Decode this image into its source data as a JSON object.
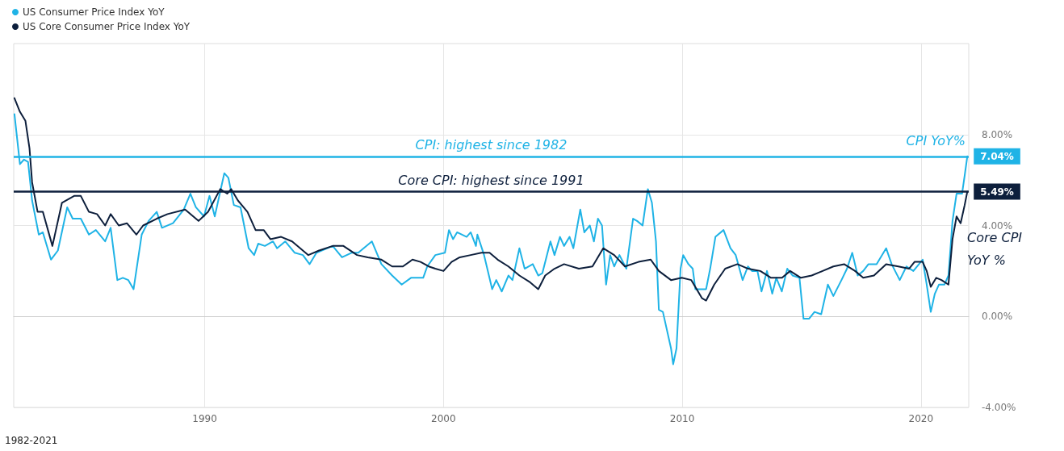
{
  "chart_data": {
    "type": "line",
    "legend": "top left",
    "grid": true,
    "marker": "none",
    "line_style": "solid",
    "xlim": [
      1982,
      2022
    ],
    "xticks": [
      1990,
      2000,
      2010,
      2020
    ],
    "ylim": [
      -4,
      12
    ],
    "yticks": [
      {
        "value": -4,
        "label": "-4.00%"
      },
      {
        "value": 0,
        "label": "0.00%"
      },
      {
        "value": 4,
        "label": "4.00%"
      },
      {
        "value": 8,
        "label": "8.00%"
      }
    ],
    "series": [
      {
        "name": "US Consumer Price Index YoY",
        "color": "#1fb3e6",
        "x": [
          1982.03,
          1982.26,
          1982.43,
          1982.6,
          1982.77,
          1983.05,
          1983.22,
          1983.56,
          1983.85,
          1984.24,
          1984.47,
          1984.81,
          1985.15,
          1985.44,
          1985.83,
          1986.06,
          1986.34,
          1986.57,
          1986.8,
          1987.02,
          1987.36,
          1987.65,
          1987.99,
          1988.21,
          1988.67,
          1989.12,
          1989.4,
          1989.63,
          1989.97,
          1990.2,
          1990.42,
          1990.82,
          1990.99,
          1991.22,
          1991.5,
          1991.84,
          1992.07,
          1992.24,
          1992.52,
          1992.86,
          1993.03,
          1993.37,
          1993.77,
          1994.11,
          1994.39,
          1994.68,
          1995.36,
          1995.75,
          1996.15,
          1996.43,
          1997.0,
          1997.4,
          1997.85,
          1998.25,
          1998.64,
          1999.15,
          1999.32,
          1999.66,
          2000.06,
          2000.23,
          2000.4,
          2000.57,
          2000.97,
          2001.14,
          2001.36,
          2001.42,
          2001.7,
          2002.04,
          2002.21,
          2002.44,
          2002.72,
          2002.89,
          2003.18,
          2003.4,
          2003.74,
          2003.97,
          2004.14,
          2004.48,
          2004.65,
          2004.88,
          2005.05,
          2005.28,
          2005.44,
          2005.73,
          2005.9,
          2006.13,
          2006.3,
          2006.47,
          2006.64,
          2006.81,
          2006.98,
          2007.15,
          2007.37,
          2007.66,
          2007.94,
          2008.11,
          2008.34,
          2008.56,
          2008.73,
          2008.9,
          2009.02,
          2009.19,
          2009.53,
          2009.62,
          2009.76,
          2009.93,
          2010.04,
          2010.26,
          2010.44,
          2010.55,
          2011.0,
          2011.17,
          2011.39,
          2011.73,
          2012.02,
          2012.24,
          2012.53,
          2012.75,
          2012.92,
          2013.15,
          2013.32,
          2013.55,
          2013.77,
          2013.94,
          2014.17,
          2014.4,
          2014.62,
          2014.91,
          2015.08,
          2015.31,
          2015.54,
          2015.82,
          2016.1,
          2016.33,
          2016.67,
          2016.9,
          2017.12,
          2017.35,
          2017.58,
          2017.8,
          2018.14,
          2018.54,
          2018.77,
          2019.11,
          2019.39,
          2019.68,
          2020.07,
          2020.24,
          2020.41,
          2020.58,
          2020.75,
          2020.98,
          2021.15,
          2021.32,
          2021.49,
          2021.72,
          2021.83,
          2021.94
        ],
        "values": [
          8.9,
          6.7,
          6.9,
          6.8,
          5.1,
          3.6,
          3.7,
          2.5,
          2.9,
          4.8,
          4.3,
          4.3,
          3.6,
          3.8,
          3.3,
          3.9,
          1.6,
          1.7,
          1.6,
          1.2,
          3.6,
          4.2,
          4.6,
          3.9,
          4.1,
          4.7,
          5.4,
          4.8,
          4.4,
          5.3,
          4.4,
          6.3,
          6.1,
          4.9,
          4.8,
          3.0,
          2.7,
          3.2,
          3.1,
          3.3,
          3.0,
          3.3,
          2.8,
          2.7,
          2.3,
          2.8,
          3.1,
          2.6,
          2.8,
          2.8,
          3.3,
          2.3,
          1.8,
          1.4,
          1.7,
          1.7,
          2.2,
          2.7,
          2.8,
          3.8,
          3.4,
          3.7,
          3.5,
          3.7,
          3.1,
          3.6,
          2.7,
          1.2,
          1.6,
          1.1,
          1.8,
          1.6,
          3.0,
          2.1,
          2.3,
          1.8,
          1.9,
          3.3,
          2.7,
          3.5,
          3.1,
          3.5,
          3.0,
          4.7,
          3.7,
          4.0,
          3.3,
          4.3,
          4.0,
          1.4,
          2.7,
          2.2,
          2.7,
          2.1,
          4.3,
          4.2,
          4.0,
          5.6,
          5.0,
          3.3,
          0.3,
          0.2,
          -1.4,
          -2.1,
          -1.4,
          2.1,
          2.7,
          2.3,
          2.1,
          1.2,
          1.2,
          2.1,
          3.5,
          3.8,
          3.0,
          2.7,
          1.6,
          2.2,
          2.0,
          2.0,
          1.1,
          2.0,
          1.0,
          1.7,
          1.1,
          2.1,
          1.8,
          1.7,
          -0.1,
          -0.1,
          0.2,
          0.1,
          1.4,
          0.9,
          1.6,
          2.1,
          2.8,
          1.8,
          2.0,
          2.3,
          2.3,
          3.0,
          2.3,
          1.6,
          2.2,
          2.0,
          2.5,
          1.4,
          0.2,
          1.0,
          1.4,
          1.4,
          1.8,
          4.2,
          5.4,
          5.4,
          6.2,
          7.04
        ],
        "value_labels": [
          null,
          null,
          null,
          null,
          null,
          null,
          null,
          null,
          null,
          null,
          null,
          null,
          null,
          null,
          null,
          null,
          null,
          null,
          null,
          null,
          null,
          null,
          null,
          null,
          null,
          null,
          null,
          null,
          null,
          null,
          null,
          null,
          null,
          null,
          null,
          null,
          null,
          null,
          null,
          null,
          null,
          null,
          null,
          null,
          null,
          null,
          null,
          null,
          null,
          null,
          null,
          null,
          null,
          null,
          null,
          null,
          null,
          null,
          null,
          null,
          null,
          null,
          null,
          null,
          null,
          null,
          null,
          null,
          null,
          null,
          null,
          null,
          null,
          null,
          null,
          null,
          null,
          null,
          null,
          null,
          null,
          null,
          null,
          null,
          null,
          null,
          null,
          null,
          null,
          null,
          null,
          null,
          null,
          null,
          null,
          null,
          null,
          null,
          null,
          null,
          null,
          null,
          null,
          null,
          null,
          null,
          null,
          null,
          null,
          null,
          null,
          null,
          null,
          null,
          null,
          null,
          null,
          null,
          null,
          null,
          null,
          null,
          null,
          null,
          null,
          null,
          null,
          null,
          null,
          null,
          null,
          null,
          null,
          null,
          null,
          null,
          null,
          null,
          null,
          null,
          null,
          null,
          null,
          null,
          null,
          null,
          null,
          null,
          null,
          null,
          null,
          null,
          null,
          null,
          null,
          null,
          null,
          "7.04%"
        ]
      },
      {
        "name": "US Core Consumer Price Index YoY",
        "color": "#0d1f3c",
        "x": [
          1982.03,
          1982.26,
          1982.49,
          1982.66,
          1982.77,
          1983.0,
          1983.22,
          1983.62,
          1984.02,
          1984.53,
          1984.81,
          1985.15,
          1985.49,
          1985.83,
          1986.06,
          1986.4,
          1986.74,
          1987.14,
          1987.42,
          1987.99,
          1988.44,
          1989.18,
          1989.74,
          1990.14,
          1990.65,
          1990.94,
          1991.11,
          1991.39,
          1991.79,
          1992.13,
          1992.47,
          1992.75,
          1993.2,
          1993.66,
          1994.34,
          1994.79,
          1995.36,
          1995.81,
          1996.38,
          1996.83,
          1997.4,
          1997.85,
          1998.3,
          1998.7,
          1999.04,
          1999.38,
          1999.66,
          2000.0,
          2000.34,
          2000.68,
          2001.14,
          2001.59,
          2001.93,
          2002.27,
          2002.72,
          2003.18,
          2003.63,
          2003.97,
          2004.26,
          2004.65,
          2005.05,
          2005.67,
          2006.24,
          2006.69,
          2007.15,
          2007.6,
          2008.17,
          2008.68,
          2009.02,
          2009.53,
          2009.98,
          2010.38,
          2010.83,
          2011.0,
          2011.34,
          2011.8,
          2012.31,
          2012.76,
          2013.27,
          2013.72,
          2014.18,
          2014.52,
          2014.97,
          2015.42,
          2015.88,
          2016.33,
          2016.78,
          2017.24,
          2017.58,
          2018.03,
          2018.54,
          2019.05,
          2019.5,
          2019.73,
          2020.07,
          2020.24,
          2020.41,
          2020.64,
          2020.86,
          2021.15,
          2021.32,
          2021.49,
          2021.66,
          2021.83,
          2021.94
        ],
        "values": [
          9.6,
          9.0,
          8.6,
          7.4,
          5.9,
          4.6,
          4.6,
          3.1,
          5.0,
          5.3,
          5.3,
          4.6,
          4.5,
          4.0,
          4.5,
          4.0,
          4.1,
          3.6,
          4.0,
          4.3,
          4.5,
          4.7,
          4.2,
          4.6,
          5.6,
          5.4,
          5.6,
          5.1,
          4.6,
          3.8,
          3.8,
          3.4,
          3.5,
          3.3,
          2.7,
          2.9,
          3.1,
          3.1,
          2.7,
          2.6,
          2.5,
          2.2,
          2.2,
          2.5,
          2.4,
          2.2,
          2.1,
          2.0,
          2.4,
          2.6,
          2.7,
          2.8,
          2.8,
          2.5,
          2.2,
          1.8,
          1.5,
          1.2,
          1.8,
          2.1,
          2.3,
          2.1,
          2.2,
          3.0,
          2.7,
          2.2,
          2.4,
          2.5,
          2.0,
          1.6,
          1.7,
          1.6,
          0.8,
          0.7,
          1.4,
          2.1,
          2.3,
          2.1,
          2.0,
          1.7,
          1.7,
          2.0,
          1.7,
          1.8,
          2.0,
          2.2,
          2.3,
          2.0,
          1.7,
          1.8,
          2.3,
          2.2,
          2.1,
          2.4,
          2.4,
          2.0,
          1.3,
          1.7,
          1.6,
          1.4,
          3.4,
          4.4,
          4.1,
          4.9,
          5.49
        ],
        "value_labels": [
          null,
          null,
          null,
          null,
          null,
          null,
          null,
          null,
          null,
          null,
          null,
          null,
          null,
          null,
          null,
          null,
          null,
          null,
          null,
          null,
          null,
          null,
          null,
          null,
          null,
          null,
          null,
          null,
          null,
          null,
          null,
          null,
          null,
          null,
          null,
          null,
          null,
          null,
          null,
          null,
          null,
          null,
          null,
          null,
          null,
          null,
          null,
          null,
          null,
          null,
          null,
          null,
          null,
          null,
          null,
          null,
          null,
          null,
          null,
          null,
          null,
          null,
          null,
          null,
          null,
          null,
          null,
          null,
          null,
          null,
          null,
          null,
          null,
          null,
          null,
          null,
          null,
          null,
          null,
          null,
          null,
          null,
          null,
          null,
          null,
          null,
          null,
          null,
          null,
          null,
          null,
          null,
          null,
          null,
          null,
          null,
          null,
          null,
          null,
          null,
          null,
          null,
          null,
          null,
          "5.49%"
        ]
      }
    ],
    "ref_lines": [
      {
        "axis": "y",
        "value": 7.04,
        "label": "CPI: highest since 1982",
        "color": "#1fb3e6"
      },
      {
        "axis": "y",
        "value": 5.49,
        "label": "Core CPI: highest since 1991",
        "color": "#0d1f3c"
      }
    ],
    "annotations": [
      "CPI YoY%",
      "Core CPI YoY %",
      "1982-2021"
    ]
  }
}
